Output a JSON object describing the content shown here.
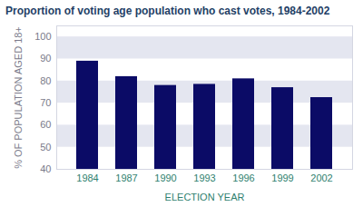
{
  "chart_data": {
    "type": "bar",
    "title": "Proportion of voting age population who cast votes, 1984-2002",
    "x_label": "ELECTION YEAR",
    "y_label": "% OF POPULATION AGED 18+",
    "categories": [
      "1984",
      "1987",
      "1990",
      "1993",
      "1996",
      "1999",
      "2002"
    ],
    "values": [
      89,
      82,
      78,
      78.5,
      81,
      77,
      72.5
    ],
    "color": "#0b0b66",
    "ylim": [
      40,
      105
    ],
    "yticks": [
      40,
      50,
      60,
      70,
      80,
      90,
      100
    ],
    "grid": true
  }
}
